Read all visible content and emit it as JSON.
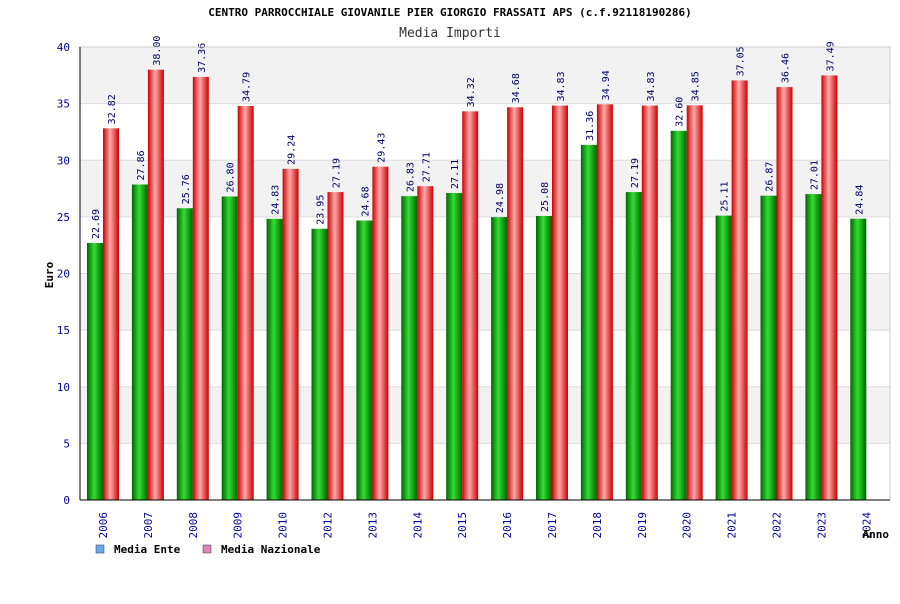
{
  "chart_data": {
    "type": "bar",
    "title": "CENTRO PARROCCHIALE GIOVANILE PIER GIORGIO FRASSATI APS (c.f.92118190286)",
    "subtitle": "Media Importi",
    "xlabel": "Anno",
    "ylabel": "Euro",
    "ylim": [
      0,
      40
    ],
    "yticks": [
      0,
      5,
      10,
      15,
      20,
      25,
      30,
      35,
      40
    ],
    "grid": true,
    "legend_position": "bottom-left",
    "categories": [
      "2006",
      "2007",
      "2008",
      "2009",
      "2010",
      "2012",
      "2013",
      "2014",
      "2015",
      "2016",
      "2017",
      "2018",
      "2019",
      "2020",
      "2021",
      "2022",
      "2023",
      "2024"
    ],
    "series": [
      {
        "name": "Media Ente",
        "color": "#00aa00",
        "legend_color": "#66aaee",
        "values": [
          22.69,
          27.86,
          25.76,
          26.8,
          24.83,
          23.95,
          24.68,
          26.83,
          27.11,
          24.98,
          25.08,
          31.36,
          27.19,
          32.6,
          25.11,
          26.87,
          27.01,
          24.84
        ],
        "labels": [
          "22.69",
          "27.86",
          "25.76",
          "26.80",
          "24.83",
          "23.95",
          "24.68",
          "26.83",
          "27.11",
          "24.98",
          "25.08",
          "31.36",
          "27.19",
          "32.60",
          "25.11",
          "26.87",
          "27.01",
          "24.84"
        ]
      },
      {
        "name": "Media Nazionale",
        "color": "#ee2222",
        "legend_color": "#dd88bb",
        "values": [
          32.82,
          38.0,
          37.36,
          34.79,
          29.24,
          27.19,
          29.43,
          27.71,
          34.32,
          34.68,
          34.83,
          34.94,
          34.83,
          34.85,
          37.05,
          36.46,
          37.49,
          null
        ],
        "labels": [
          "32.82",
          "38.00",
          "37.36",
          "34.79",
          "29.24",
          "27.19",
          "29.43",
          "27.71",
          "34.32",
          "34.68",
          "34.83",
          "34.94",
          "34.83",
          "34.85",
          "37.05",
          "36.46",
          "37.49",
          ""
        ]
      }
    ]
  }
}
